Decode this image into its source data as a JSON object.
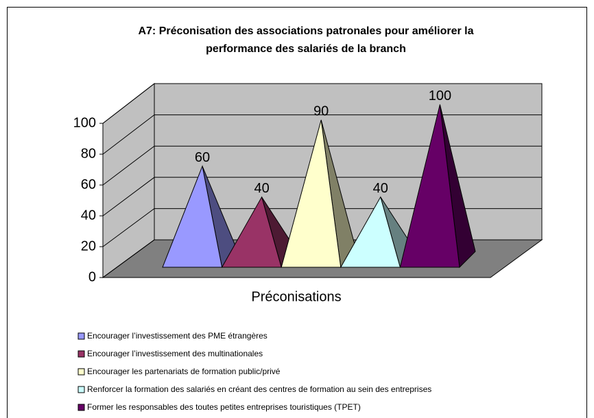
{
  "chart_data": {
    "type": "pyramid",
    "title": [
      "A7: Préconisation des associations patronales pour améliorer la",
      "performance des salariés de la branch"
    ],
    "categories": [
      "Préconisations"
    ],
    "ylim": [
      0,
      100
    ],
    "yticks": [
      0,
      20,
      40,
      60,
      80,
      100
    ],
    "grid": true,
    "series": [
      {
        "name": "Encourager l’investissement des PME étrangères",
        "color": "#9999ff",
        "values": [
          60
        ]
      },
      {
        "name": "Encourager l’investissement des multinationales",
        "color": "#993366",
        "values": [
          40
        ]
      },
      {
        "name": "Encourager les partenariats de formation public/privé",
        "color": "#ffffcc",
        "values": [
          90
        ]
      },
      {
        "name": "Renforcer la formation des salariés en créant des centres de formation au sein des entreprises",
        "color": "#ccffff",
        "values": [
          40
        ]
      },
      {
        "name": "Former les responsables des toutes petites entreprises touristiques (TPET)",
        "color": "#660066",
        "values": [
          100
        ]
      }
    ],
    "legend": "bottom"
  }
}
